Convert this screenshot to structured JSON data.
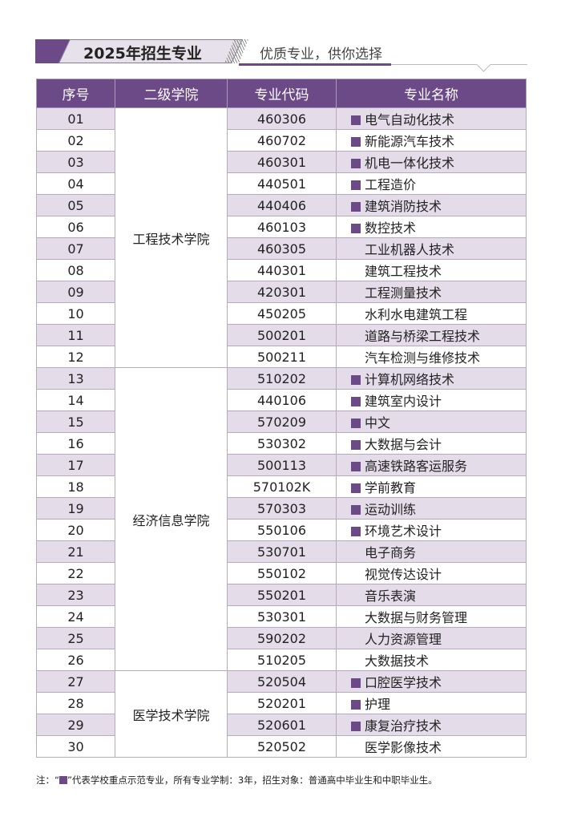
{
  "header": {
    "title": "2025年招生专业",
    "subtitle": "优质专业，供你选择"
  },
  "accent": "#6b4a87",
  "table": {
    "columns": [
      "序号",
      "二级学院",
      "专业代码",
      "专业名称"
    ],
    "colleges": [
      {
        "name": "工程技术学院",
        "rows": 12
      },
      {
        "name": "经济信息学院",
        "rows": 14
      },
      {
        "name": "医学技术学院",
        "rows": 4
      }
    ],
    "rows": [
      {
        "no": "01",
        "code": "460306",
        "name": "电气自动化技术",
        "key": true
      },
      {
        "no": "02",
        "code": "460702",
        "name": "新能源汽车技术",
        "key": true
      },
      {
        "no": "03",
        "code": "460301",
        "name": "机电一体化技术",
        "key": true
      },
      {
        "no": "04",
        "code": "440501",
        "name": "工程造价",
        "key": true
      },
      {
        "no": "05",
        "code": "440406",
        "name": "建筑消防技术",
        "key": true
      },
      {
        "no": "06",
        "code": "460103",
        "name": "数控技术",
        "key": true
      },
      {
        "no": "07",
        "code": "460305",
        "name": "工业机器人技术",
        "key": false
      },
      {
        "no": "08",
        "code": "440301",
        "name": "建筑工程技术",
        "key": false
      },
      {
        "no": "09",
        "code": "420301",
        "name": "工程测量技术",
        "key": false
      },
      {
        "no": "10",
        "code": "450205",
        "name": "水利水电建筑工程",
        "key": false
      },
      {
        "no": "11",
        "code": "500201",
        "name": "道路与桥梁工程技术",
        "key": false
      },
      {
        "no": "12",
        "code": "500211",
        "name": "汽车检测与维修技术",
        "key": false
      },
      {
        "no": "13",
        "code": "510202",
        "name": "计算机网络技术",
        "key": true
      },
      {
        "no": "14",
        "code": "440106",
        "name": "建筑室内设计",
        "key": true
      },
      {
        "no": "15",
        "code": "570209",
        "name": "中文",
        "key": true
      },
      {
        "no": "16",
        "code": "530302",
        "name": "大数据与会计",
        "key": true
      },
      {
        "no": "17",
        "code": "500113",
        "name": "高速铁路客运服务",
        "key": true
      },
      {
        "no": "18",
        "code": "570102K",
        "name": "学前教育",
        "key": true
      },
      {
        "no": "19",
        "code": "570303",
        "name": "运动训练",
        "key": true
      },
      {
        "no": "20",
        "code": "550106",
        "name": "环境艺术设计",
        "key": true
      },
      {
        "no": "21",
        "code": "530701",
        "name": "电子商务",
        "key": false
      },
      {
        "no": "22",
        "code": "550102",
        "name": "视觉传达设计",
        "key": false
      },
      {
        "no": "23",
        "code": "550201",
        "name": "音乐表演",
        "key": false
      },
      {
        "no": "24",
        "code": "530301",
        "name": "大数据与财务管理",
        "key": false
      },
      {
        "no": "25",
        "code": "590202",
        "name": "人力资源管理",
        "key": false
      },
      {
        "no": "26",
        "code": "510205",
        "name": "大数据技术",
        "key": false
      },
      {
        "no": "27",
        "code": "520504",
        "name": "口腔医学技术",
        "key": true
      },
      {
        "no": "28",
        "code": "520201",
        "name": "护理",
        "key": true
      },
      {
        "no": "29",
        "code": "520601",
        "name": "康复治疗技术",
        "key": true
      },
      {
        "no": "30",
        "code": "520502",
        "name": "医学影像技术",
        "key": false
      }
    ]
  },
  "note": {
    "prefix": "注：“",
    "suffix": "”代表学校重点示范专业，所有专业学制：3年，招生对象：普通高中毕业生和中职毕业生。"
  }
}
